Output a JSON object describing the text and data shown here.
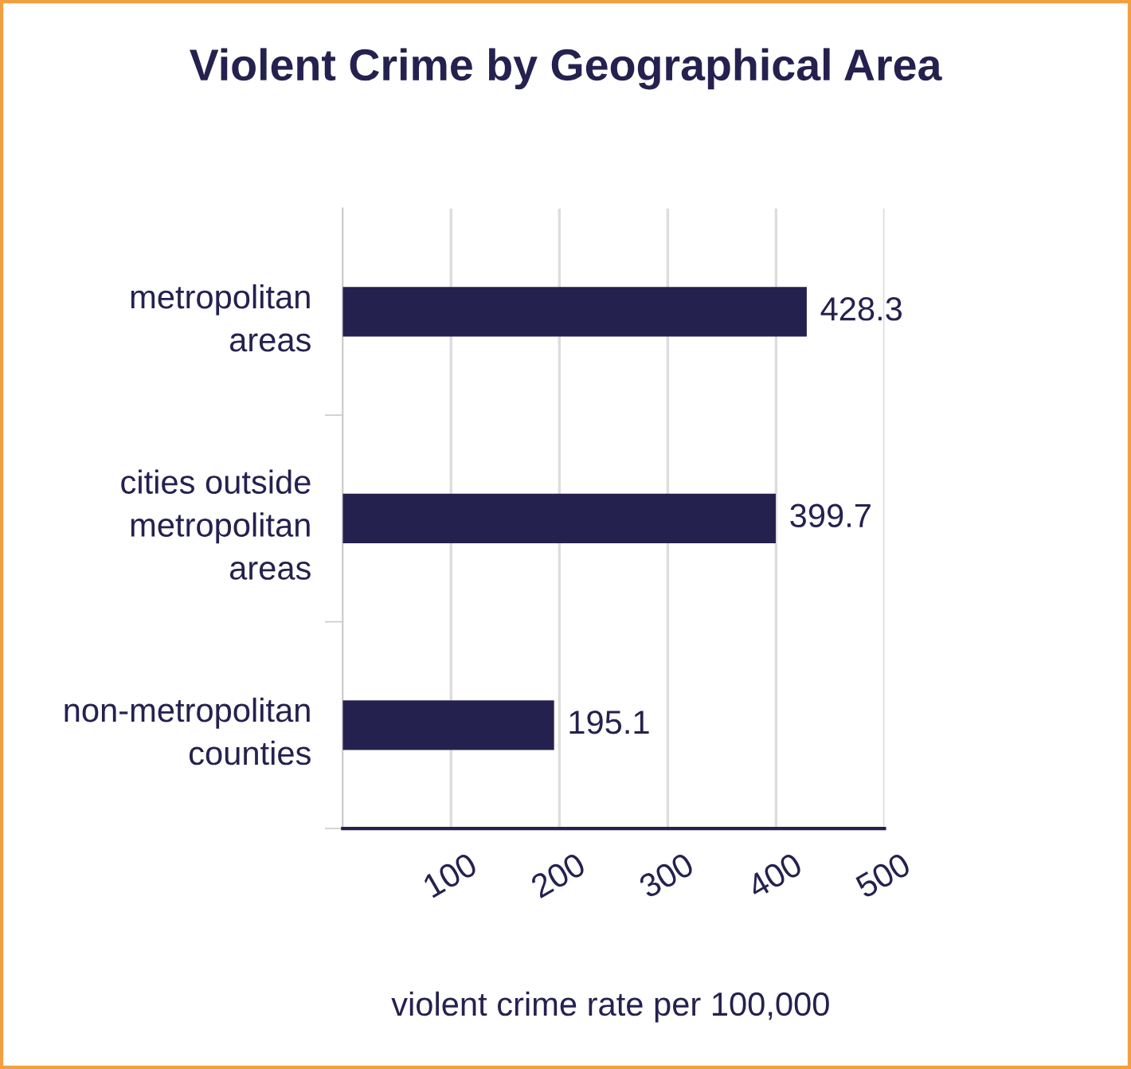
{
  "chart_data": {
    "type": "bar",
    "orientation": "horizontal",
    "title": "Violent Crime by Geographical Area",
    "xlabel": "violent crime rate per 100,000",
    "categories": [
      "metropolitan\nareas",
      "cities outside\nmetropolitan\nareas",
      "non-metropolitan\ncounties"
    ],
    "values": [
      428.3,
      399.7,
      195.1
    ],
    "color": "#25214f",
    "value_labels": [
      "428.3",
      "399.7",
      "195.1"
    ],
    "xlim": [
      0,
      500
    ],
    "xticks": [
      100,
      200,
      300,
      400,
      500
    ],
    "grid": "x",
    "legend": false
  }
}
